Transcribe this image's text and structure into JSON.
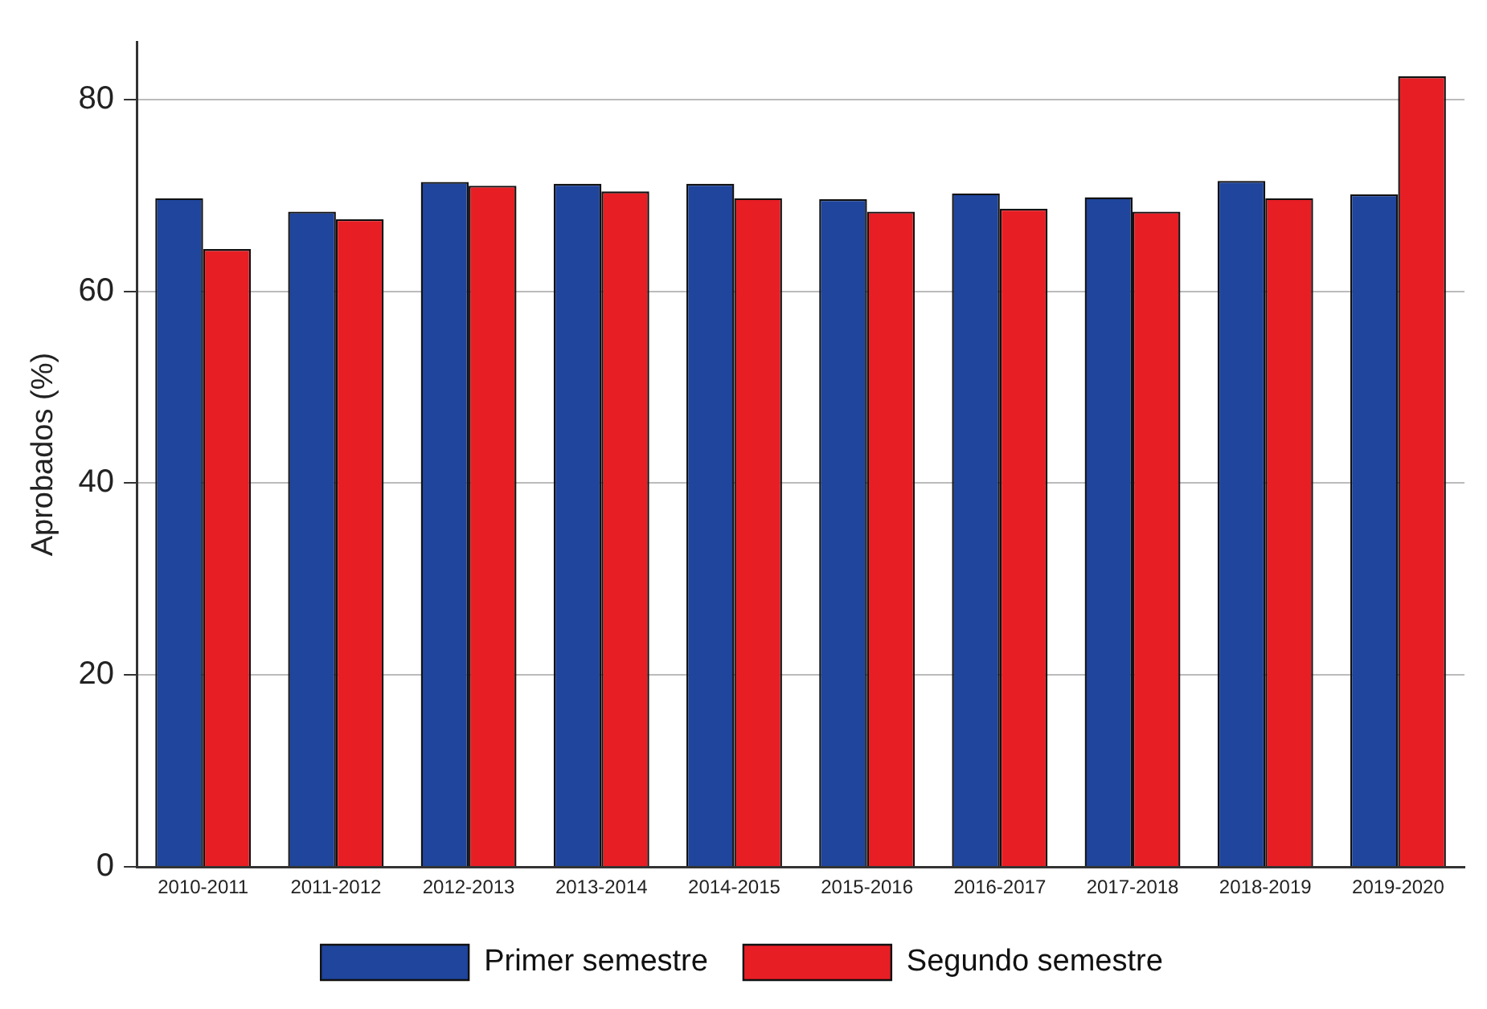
{
  "chart_data": {
    "type": "bar",
    "ylabel": "Aprobados (%)",
    "categories": [
      "2010-2011",
      "2011-2012",
      "2012-2013",
      "2013-2014",
      "2014-2015",
      "2015-2016",
      "2016-2017",
      "2017-2018",
      "2018-2019",
      "2019-2020"
    ],
    "series": [
      {
        "name": "Primer semestre",
        "color": "#1f459c",
        "values": [
          69.7,
          68.3,
          71.4,
          71.2,
          71.2,
          69.6,
          70.2,
          69.8,
          71.5,
          70.1
        ]
      },
      {
        "name": "Segundo semestre",
        "color": "#e81e25",
        "values": [
          64.4,
          67.5,
          71.0,
          70.4,
          69.7,
          68.3,
          68.6,
          68.3,
          69.7,
          82.4
        ]
      }
    ],
    "ylim": [
      0,
      86
    ],
    "yticks": [
      0,
      20,
      40,
      60,
      80
    ],
    "grid": "y",
    "legend": "bottom"
  }
}
